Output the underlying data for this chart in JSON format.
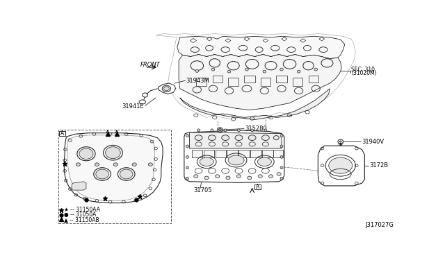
{
  "background_color": "#ffffff",
  "diagram_id": "J317027G",
  "labels": {
    "front_arrow": "FRONT",
    "sec310_line1": "SEC. 310",
    "sec310_line2": "(31020M)",
    "part_31943M": "31943M",
    "part_31941E": "31941E",
    "part_315280": "315280",
    "part_31705": "31705",
    "part_31940V": "31940V",
    "part_3172B": "3172B",
    "legend_star": "★ -- 31150AA",
    "legend_diamond": "● -- 31050A",
    "legend_triangle": "▲ -- 31150AB",
    "box_A": "A"
  },
  "lc": "#222222",
  "tc": "#000000"
}
